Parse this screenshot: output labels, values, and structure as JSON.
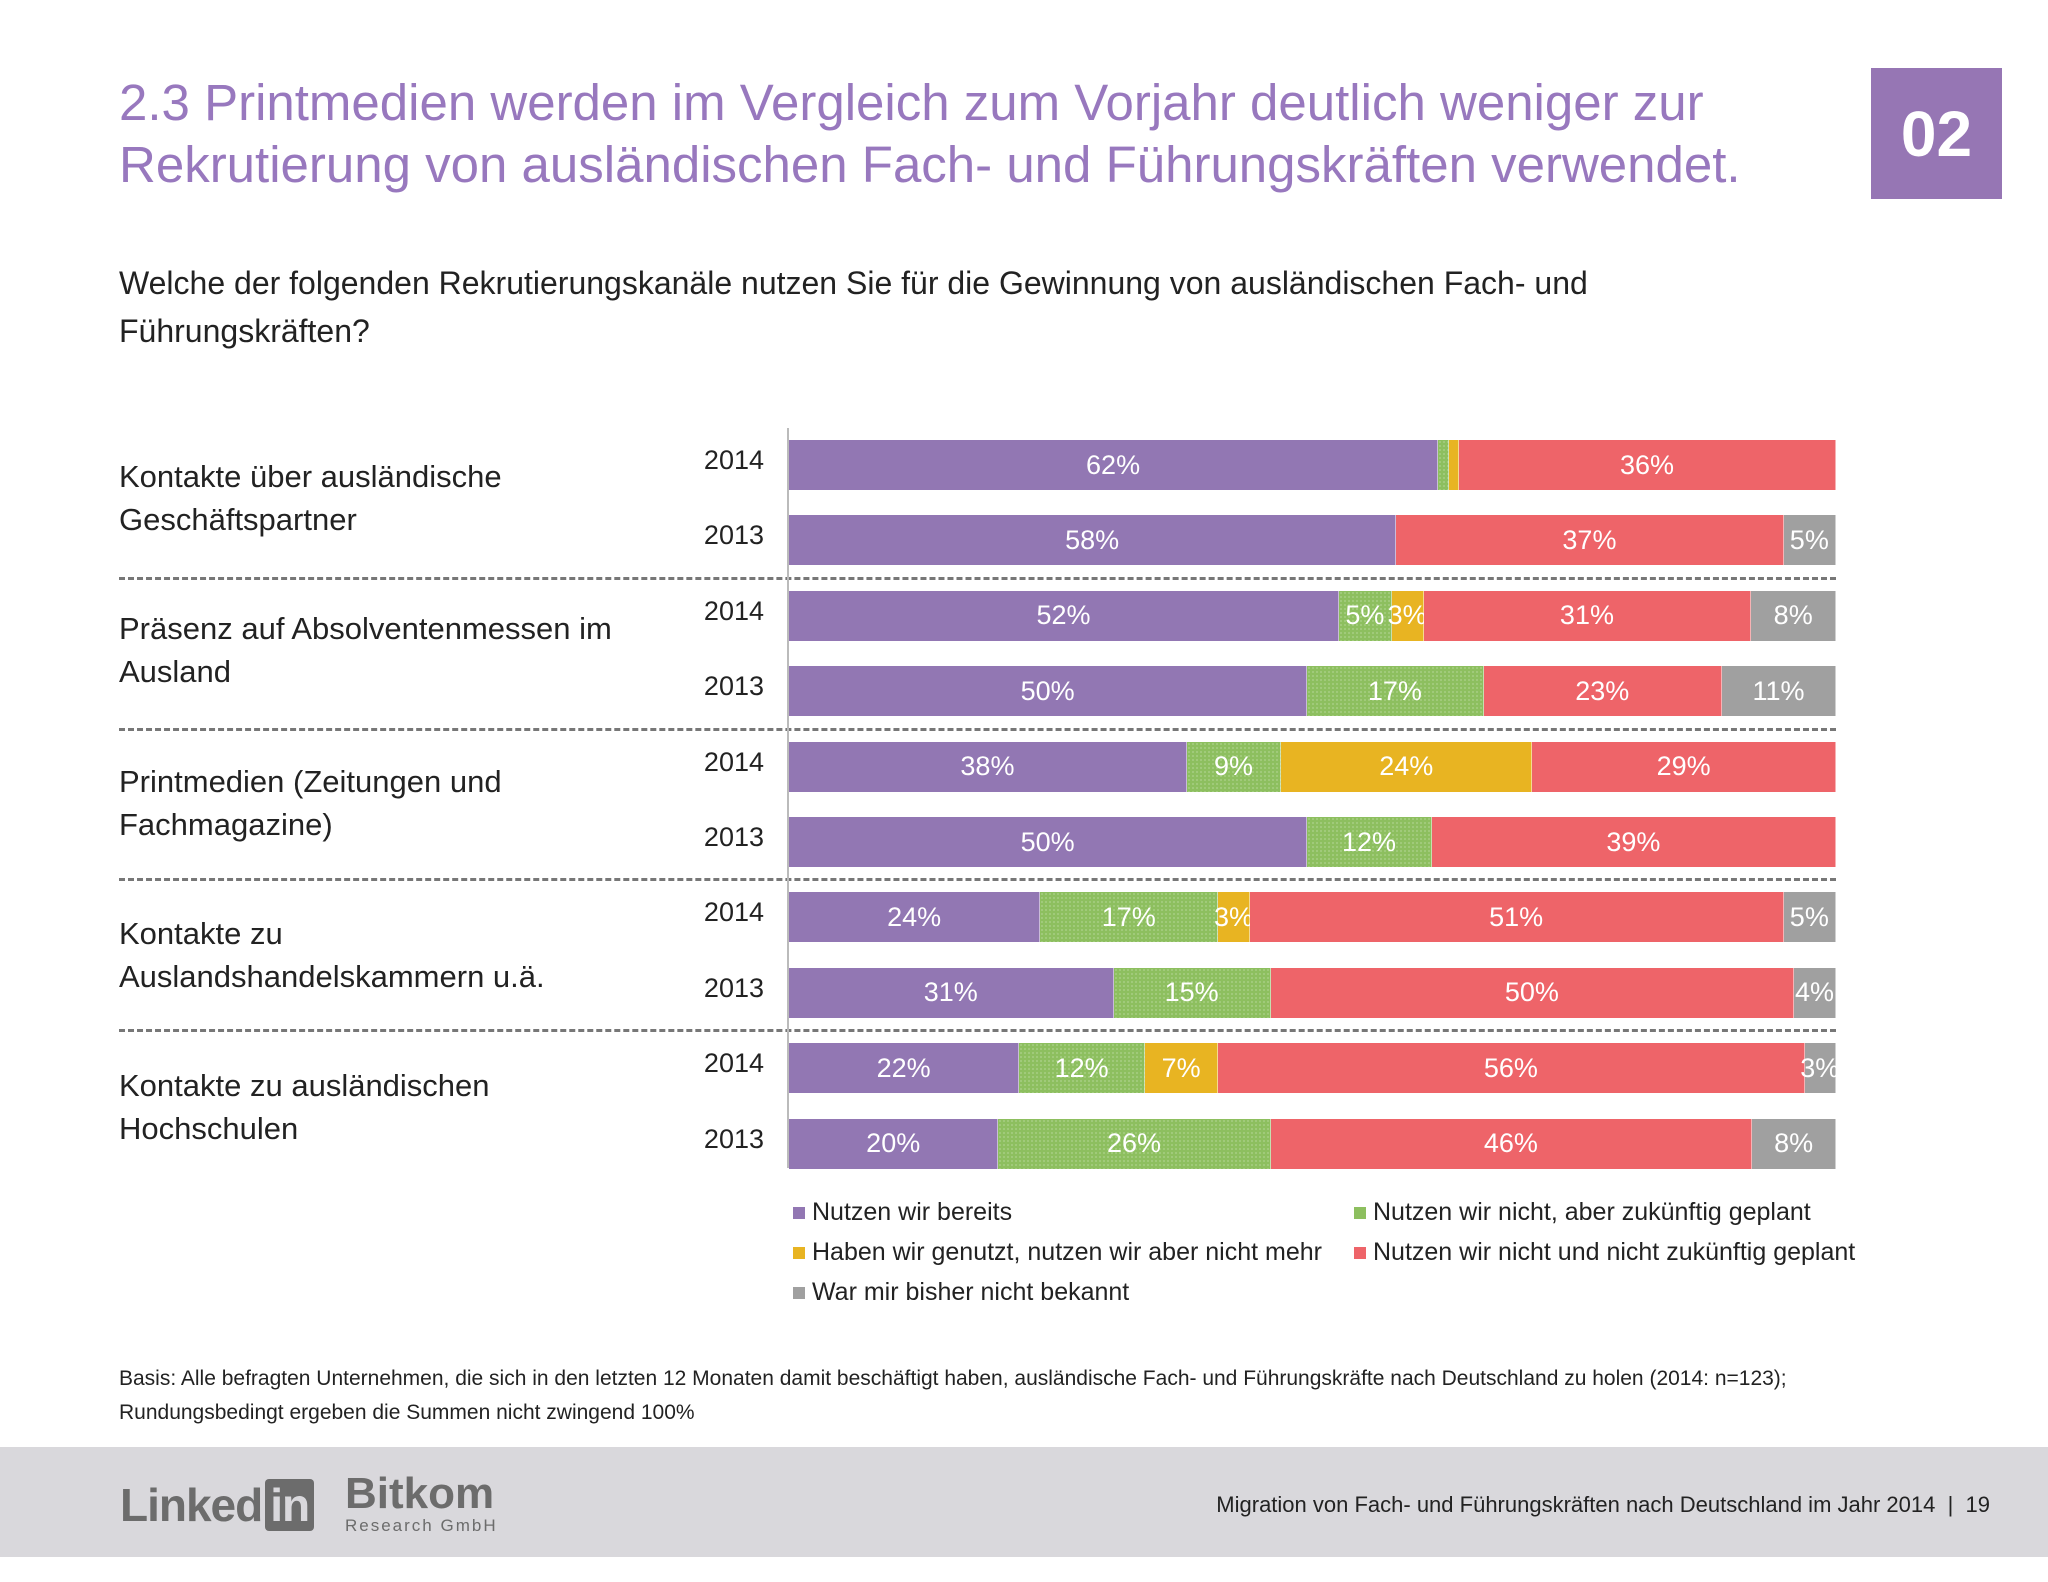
{
  "header": {
    "title": "2.3 Printmedien werden im Vergleich zum Vorjahr deutlich weniger zur Rekrutierung von ausländischen Fach- und Führungskräften verwendet.",
    "badge": "02"
  },
  "question": "Welche der folgenden Rekrutierungskanäle nutzen Sie für die Gewinnung von ausländischen Fach- und Führungskräften?",
  "colors": {
    "title": "#9878be",
    "nutzen": "#9277b3",
    "geplant": "#8dbf5f",
    "genutzt": "#e8b422",
    "nicht": "#ee6469",
    "unbekannt": "#a0a0a0"
  },
  "chart_data": {
    "type": "bar",
    "orientation": "horizontal",
    "stacked": true,
    "legend_position": "bottom",
    "series": [
      {
        "name": "Nutzen wir bereits",
        "color": "#9277b3"
      },
      {
        "name": "Nutzen wir nicht, aber zukünftig geplant",
        "color": "#8dbf5f"
      },
      {
        "name": "Haben wir genutzt, nutzen wir aber nicht mehr",
        "color": "#e8b422"
      },
      {
        "name": "Nutzen wir nicht und nicht zukünftig geplant",
        "color": "#ee6469"
      },
      {
        "name": "War mir bisher nicht bekannt",
        "color": "#a0a0a0"
      }
    ],
    "categories": [
      {
        "label": "Kontakte über ausländische Geschäftspartner",
        "rows": [
          {
            "year": "2014",
            "values": [
              62,
              1,
              1,
              36,
              0
            ]
          },
          {
            "year": "2013",
            "values": [
              58,
              0,
              0,
              37,
              5
            ]
          }
        ]
      },
      {
        "label": "Präsenz auf Absolventenmessen im Ausland",
        "rows": [
          {
            "year": "2014",
            "values": [
              52,
              5,
              3,
              31,
              8
            ]
          },
          {
            "year": "2013",
            "values": [
              50,
              17,
              0,
              23,
              11
            ]
          }
        ]
      },
      {
        "label": "Printmedien (Zeitungen und Fachmagazine)",
        "rows": [
          {
            "year": "2014",
            "values": [
              38,
              9,
              24,
              29,
              0
            ]
          },
          {
            "year": "2013",
            "values": [
              50,
              12,
              0,
              39,
              0
            ]
          }
        ]
      },
      {
        "label": "Kontakte zu Auslandshandelskammern u.ä.",
        "rows": [
          {
            "year": "2014",
            "values": [
              24,
              17,
              3,
              51,
              5
            ]
          },
          {
            "year": "2013",
            "values": [
              31,
              15,
              0,
              50,
              4
            ]
          }
        ]
      },
      {
        "label": "Kontakte zu ausländischen Hochschulen",
        "rows": [
          {
            "year": "2014",
            "values": [
              22,
              12,
              7,
              56,
              3
            ]
          },
          {
            "year": "2013",
            "values": [
              20,
              26,
              0,
              46,
              8
            ]
          }
        ]
      }
    ]
  },
  "basis": "Basis: Alle befragten Unternehmen, die sich in den letzten 12 Monaten damit beschäftigt haben, ausländische Fach- und Führungskräfte nach Deutschland zu holen (2014: n=123); Rundungsbedingt ergeben die Summen nicht zwingend 100%",
  "footer": {
    "text": "Migration von Fach- und Führungskräften nach Deutschland im Jahr 2014  |  19",
    "logo_linkedin": "LinkedIn",
    "logo_bitkom": "Bitkom",
    "logo_bitkom_sub": "Research GmbH"
  }
}
